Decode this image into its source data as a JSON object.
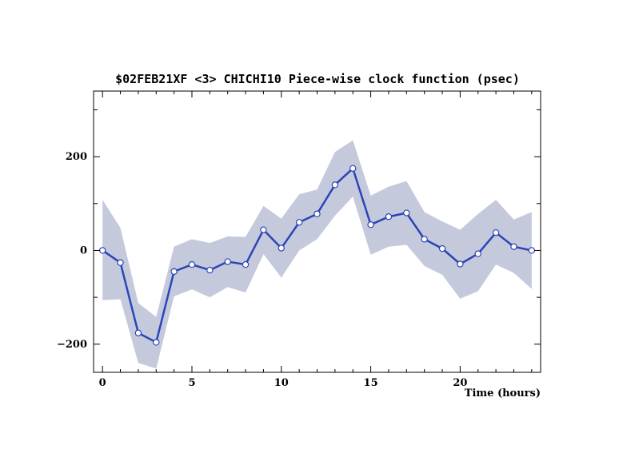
{
  "chart_data": {
    "type": "line",
    "title": "$02FEB21XF <3>  CHICHI10  Piece-wise clock function (psec)",
    "xlabel": "Time (hours)",
    "ylabel": "",
    "xlim": [
      -0.5,
      24.5
    ],
    "ylim": [
      -260,
      340
    ],
    "x_ticks": [
      0,
      5,
      10,
      15,
      20
    ],
    "y_ticks": [
      -200,
      0,
      200
    ],
    "grid": false,
    "colors": {
      "line": "#2b45b8",
      "band": "#c5c9dc",
      "marker_fill": "#ffffff"
    },
    "series": [
      {
        "x": [
          0,
          1,
          2,
          3,
          4,
          5,
          6,
          7,
          8,
          9,
          10,
          11,
          12,
          13,
          14,
          15,
          16,
          17,
          18,
          19,
          20,
          21,
          22,
          23,
          24
        ],
        "values": [
          0,
          -26,
          -176,
          -196,
          -45,
          -30,
          -42,
          -24,
          -30,
          44,
          5,
          60,
          78,
          140,
          175,
          55,
          72,
          80,
          24,
          4,
          -29,
          -7,
          38,
          8,
          0
        ],
        "band_upper": [
          108,
          48,
          -112,
          -142,
          8,
          24,
          16,
          30,
          29,
          95,
          68,
          120,
          130,
          210,
          235,
          117,
          136,
          148,
          82,
          62,
          44,
          78,
          108,
          66,
          82
        ],
        "band_lower": [
          -106,
          -104,
          -240,
          -252,
          -98,
          -83,
          -100,
          -78,
          -90,
          -8,
          -58,
          0,
          24,
          74,
          115,
          -9,
          8,
          12,
          -33,
          -52,
          -103,
          -87,
          -30,
          -48,
          -82
        ]
      }
    ]
  }
}
